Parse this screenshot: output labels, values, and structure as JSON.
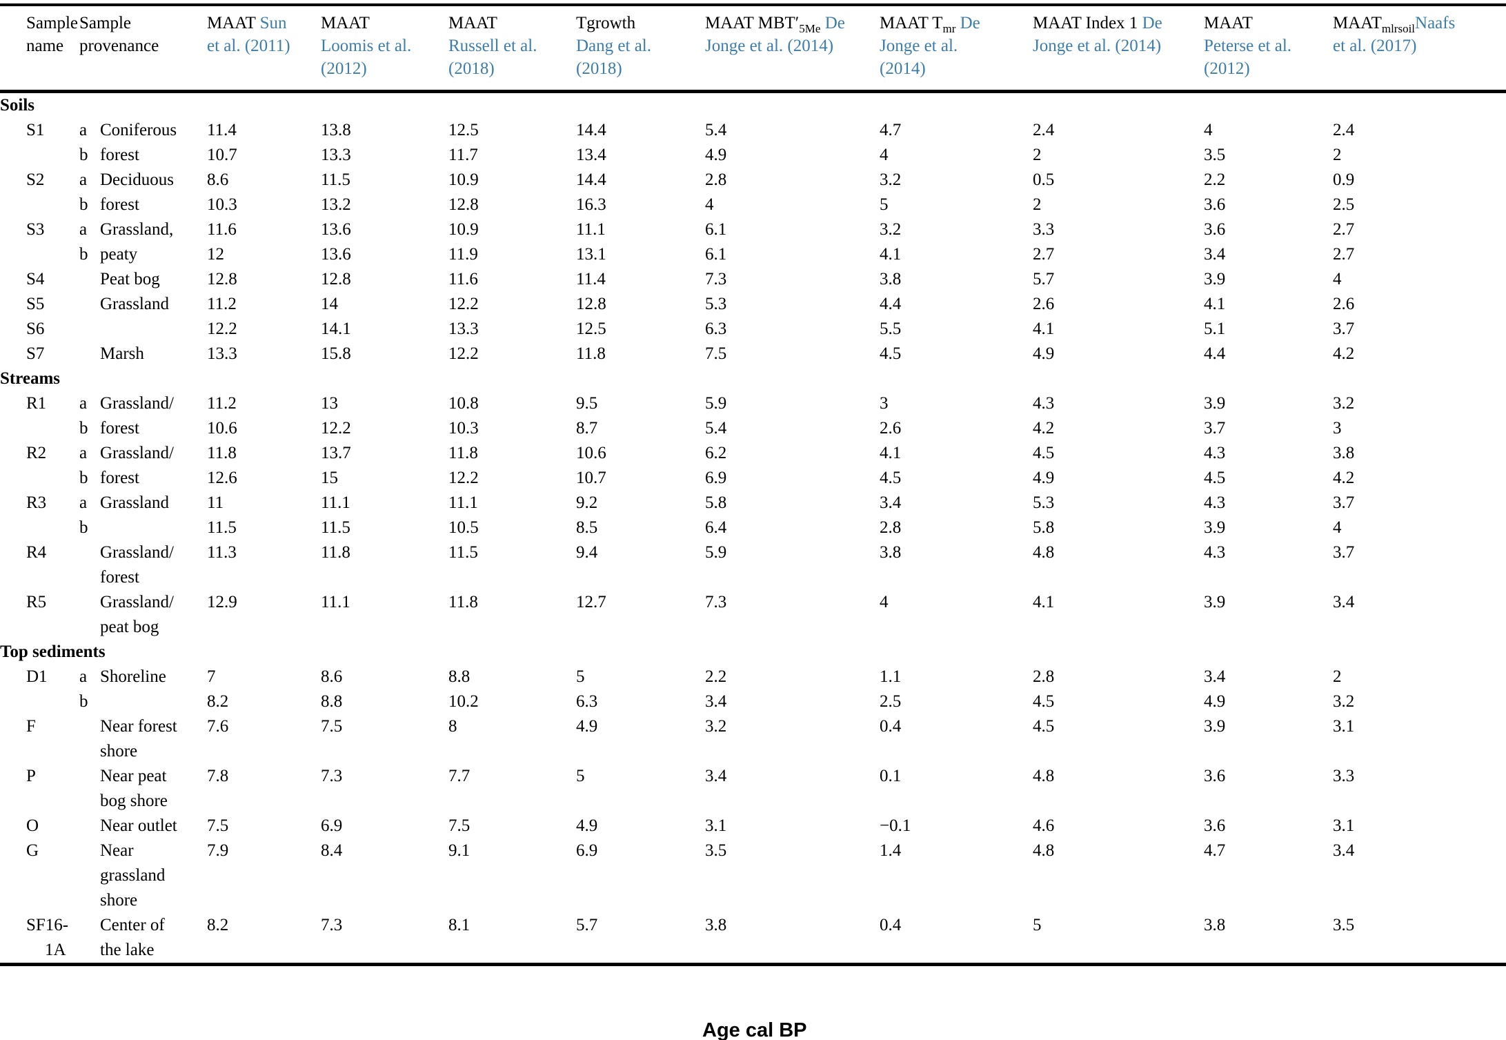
{
  "figure": {
    "axis_label": "Age cal BP"
  },
  "colors": {
    "citation_blue": "#3d7dab",
    "text": "#000000",
    "rule": "#000000"
  },
  "table": {
    "headers": [
      {
        "colspan": 1,
        "segments": [
          {
            "text": "Sample\nname",
            "style": "plain"
          }
        ]
      },
      {
        "colspan": 2,
        "segments": [
          {
            "text": "Sample\nprovenance",
            "style": "plain"
          }
        ]
      },
      {
        "colspan": 1,
        "segments": [
          {
            "text": "MAAT ",
            "style": "plain"
          },
          {
            "text": "Sun\net al. (2011)",
            "style": "cite"
          }
        ]
      },
      {
        "colspan": 1,
        "segments": [
          {
            "text": "MAAT\n",
            "style": "plain"
          },
          {
            "text": "Loomis et al.\n(2012)",
            "style": "cite"
          }
        ]
      },
      {
        "colspan": 1,
        "segments": [
          {
            "text": "MAAT\n",
            "style": "plain"
          },
          {
            "text": "Russell et al.\n(2018)",
            "style": "cite"
          }
        ]
      },
      {
        "colspan": 1,
        "segments": [
          {
            "text": "Tgrowth\n",
            "style": "plain"
          },
          {
            "text": "Dang et al.\n(2018)",
            "style": "cite"
          }
        ]
      },
      {
        "colspan": 1,
        "segments": [
          {
            "text": "MAAT MBT′",
            "style": "plain"
          },
          {
            "text": "5Me",
            "style": "sub"
          },
          {
            "text": " ",
            "style": "plain"
          },
          {
            "text": "De\nJonge et al. (2014)",
            "style": "cite"
          }
        ]
      },
      {
        "colspan": 1,
        "segments": [
          {
            "text": "MAAT T",
            "style": "plain"
          },
          {
            "text": "mr",
            "style": "sub"
          },
          {
            "text": " ",
            "style": "plain"
          },
          {
            "text": "De\nJonge et al.\n(2014)",
            "style": "cite"
          }
        ]
      },
      {
        "colspan": 1,
        "segments": [
          {
            "text": "MAAT Index 1 ",
            "style": "plain"
          },
          {
            "text": "De\nJonge et al. (2014)",
            "style": "cite"
          }
        ]
      },
      {
        "colspan": 1,
        "segments": [
          {
            "text": "MAAT\n",
            "style": "plain"
          },
          {
            "text": "Peterse et al.\n(2012)",
            "style": "cite"
          }
        ]
      },
      {
        "colspan": 1,
        "segments": [
          {
            "text": "MAAT",
            "style": "plain"
          },
          {
            "text": "mlrsoil",
            "style": "sub"
          },
          {
            "text": "Naafs\net al. (2017)",
            "style": "cite"
          }
        ]
      }
    ],
    "sections": [
      {
        "title": "Soils",
        "rows": [
          {
            "name": "S1",
            "sub": "a",
            "prov": "Coniferous",
            "values": [
              "11.4",
              "13.8",
              "12.5",
              "14.4",
              "5.4",
              "4.7",
              "2.4",
              "4",
              "2.4"
            ]
          },
          {
            "name": "",
            "sub": "b",
            "prov": "forest",
            "values": [
              "10.7",
              "13.3",
              "11.7",
              "13.4",
              "4.9",
              "4",
              "2",
              "3.5",
              "2"
            ]
          },
          {
            "name": "S2",
            "sub": "a",
            "prov": "Deciduous",
            "values": [
              "8.6",
              "11.5",
              "10.9",
              "14.4",
              "2.8",
              "3.2",
              "0.5",
              "2.2",
              "0.9"
            ]
          },
          {
            "name": "",
            "sub": "b",
            "prov": "forest",
            "values": [
              "10.3",
              "13.2",
              "12.8",
              "16.3",
              "4",
              "5",
              "2",
              "3.6",
              "2.5"
            ]
          },
          {
            "name": "S3",
            "sub": "a",
            "prov": "Grassland,",
            "values": [
              "11.6",
              "13.6",
              "10.9",
              "11.1",
              "6.1",
              "3.2",
              "3.3",
              "3.6",
              "2.7"
            ]
          },
          {
            "name": "",
            "sub": "b",
            "prov": "peaty",
            "values": [
              "12",
              "13.6",
              "11.9",
              "13.1",
              "6.1",
              "4.1",
              "2.7",
              "3.4",
              "2.7"
            ]
          },
          {
            "name": "S4",
            "sub": "",
            "prov": "Peat bog",
            "values": [
              "12.8",
              "12.8",
              "11.6",
              "11.4",
              "7.3",
              "3.8",
              "5.7",
              "3.9",
              "4"
            ]
          },
          {
            "name": "S5",
            "sub": "",
            "prov": "Grassland",
            "values": [
              "11.2",
              "14",
              "12.2",
              "12.8",
              "5.3",
              "4.4",
              "2.6",
              "4.1",
              "2.6"
            ]
          },
          {
            "name": "S6",
            "sub": "",
            "prov": "",
            "values": [
              "12.2",
              "14.1",
              "13.3",
              "12.5",
              "6.3",
              "5.5",
              "4.1",
              "5.1",
              "3.7"
            ]
          },
          {
            "name": "S7",
            "sub": "",
            "prov": "Marsh",
            "values": [
              "13.3",
              "15.8",
              "12.2",
              "11.8",
              "7.5",
              "4.5",
              "4.9",
              "4.4",
              "4.2"
            ]
          }
        ]
      },
      {
        "title": "Streams",
        "rows": [
          {
            "name": "R1",
            "sub": "a",
            "prov": "Grassland/",
            "values": [
              "11.2",
              "13",
              "10.8",
              "9.5",
              "5.9",
              "3",
              "4.3",
              "3.9",
              "3.2"
            ]
          },
          {
            "name": "",
            "sub": "b",
            "prov": "forest",
            "values": [
              "10.6",
              "12.2",
              "10.3",
              "8.7",
              "5.4",
              "2.6",
              "4.2",
              "3.7",
              "3"
            ]
          },
          {
            "name": "R2",
            "sub": "a",
            "prov": "Grassland/",
            "values": [
              "11.8",
              "13.7",
              "11.8",
              "10.6",
              "6.2",
              "4.1",
              "4.5",
              "4.3",
              "3.8"
            ]
          },
          {
            "name": "",
            "sub": "b",
            "prov": "forest",
            "values": [
              "12.6",
              "15",
              "12.2",
              "10.7",
              "6.9",
              "4.5",
              "4.9",
              "4.5",
              "4.2"
            ]
          },
          {
            "name": "R3",
            "sub": "a",
            "prov": "Grassland",
            "values": [
              "11",
              "11.1",
              "11.1",
              "9.2",
              "5.8",
              "3.4",
              "5.3",
              "4.3",
              "3.7"
            ]
          },
          {
            "name": "",
            "sub": "b",
            "prov": "",
            "values": [
              "11.5",
              "11.5",
              "10.5",
              "8.5",
              "6.4",
              "2.8",
              "5.8",
              "3.9",
              "4"
            ]
          },
          {
            "name": "R4",
            "sub": "",
            "prov": "Grassland/\nforest",
            "values": [
              "11.3",
              "11.8",
              "11.5",
              "9.4",
              "5.9",
              "3.8",
              "4.8",
              "4.3",
              "3.7"
            ]
          },
          {
            "name": "R5",
            "sub": "",
            "prov": "Grassland/\npeat bog",
            "values": [
              "12.9",
              "11.1",
              "11.8",
              "12.7",
              "7.3",
              "4",
              "4.1",
              "3.9",
              "3.4"
            ]
          }
        ]
      },
      {
        "title": "Top sediments",
        "rows": [
          {
            "name": "D1",
            "sub": "a",
            "prov": "Shoreline",
            "values": [
              "7",
              "8.6",
              "8.8",
              "5",
              "2.2",
              "1.1",
              "2.8",
              "3.4",
              "2"
            ]
          },
          {
            "name": "",
            "sub": "b",
            "prov": "",
            "values": [
              "8.2",
              "8.8",
              "10.2",
              "6.3",
              "3.4",
              "2.5",
              "4.5",
              "4.9",
              "3.2"
            ]
          },
          {
            "name": "F",
            "sub": "",
            "prov": "Near forest\nshore",
            "values": [
              "7.6",
              "7.5",
              "8",
              "4.9",
              "3.2",
              "0.4",
              "4.5",
              "3.9",
              "3.1"
            ]
          },
          {
            "name": "P",
            "sub": "",
            "prov": "Near peat\nbog shore",
            "values": [
              "7.8",
              "7.3",
              "7.7",
              "5",
              "3.4",
              "0.1",
              "4.8",
              "3.6",
              "3.3"
            ]
          },
          {
            "name": "O",
            "sub": "",
            "prov": "Near outlet",
            "values": [
              "7.5",
              "6.9",
              "7.5",
              "4.9",
              "3.1",
              "−0.1",
              "4.6",
              "3.6",
              "3.1"
            ]
          },
          {
            "name": "G",
            "sub": "",
            "prov": "Near\ngrassland\nshore",
            "values": [
              "7.9",
              "8.4",
              "9.1",
              "6.9",
              "3.5",
              "1.4",
              "4.8",
              "4.7",
              "3.4"
            ]
          },
          {
            "name": "SF16-\n1A",
            "sub": "",
            "prov": "Center of\nthe lake",
            "values": [
              "8.2",
              "7.3",
              "8.1",
              "5.7",
              "3.8",
              "0.4",
              "5",
              "3.8",
              "3.5"
            ]
          }
        ]
      }
    ]
  }
}
